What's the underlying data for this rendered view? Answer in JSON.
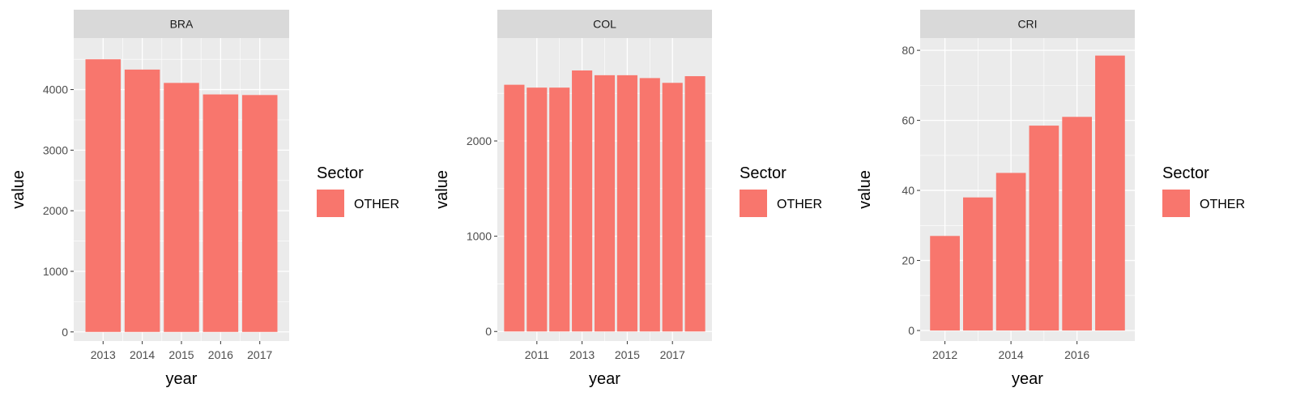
{
  "chart_data": [
    {
      "type": "bar",
      "title": "BRA",
      "xlabel": "year",
      "ylabel": "value",
      "categories": [
        2013,
        2014,
        2015,
        2016,
        2017
      ],
      "series": [
        {
          "name": "OTHER",
          "values": [
            4500,
            4330,
            4110,
            3920,
            3910
          ]
        }
      ],
      "xlim": [
        2012.25,
        2017.75
      ],
      "ylim": [
        -150,
        4850
      ],
      "xticks": [
        2013,
        2014,
        2015,
        2016,
        2017
      ],
      "yticks": [
        0,
        1000,
        2000,
        3000,
        4000
      ],
      "legend": {
        "title": "Sector",
        "entries": [
          "OTHER"
        ],
        "placement": "right"
      },
      "grid": true
    },
    {
      "type": "bar",
      "title": "COL",
      "xlabel": "year",
      "ylabel": "value",
      "categories": [
        2010,
        2011,
        2012,
        2013,
        2014,
        2015,
        2016,
        2017,
        2018
      ],
      "series": [
        {
          "name": "OTHER",
          "values": [
            2590,
            2560,
            2560,
            2740,
            2690,
            2690,
            2660,
            2610,
            2680
          ]
        }
      ],
      "xlim": [
        2009.25,
        2018.75
      ],
      "ylim": [
        -100,
        3080
      ],
      "xticks": [
        2011,
        2013,
        2015,
        2017
      ],
      "yticks": [
        0,
        1000,
        2000
      ],
      "legend": {
        "title": "Sector",
        "entries": [
          "OTHER"
        ],
        "placement": "right"
      },
      "grid": true
    },
    {
      "type": "bar",
      "title": "CRI",
      "xlabel": "year",
      "ylabel": "value",
      "categories": [
        2012,
        2013,
        2014,
        2015,
        2016,
        2017
      ],
      "series": [
        {
          "name": "OTHER",
          "values": [
            27,
            38,
            45,
            58.5,
            61,
            78.5
          ]
        }
      ],
      "xlim": [
        2011.25,
        2017.75
      ],
      "ylim": [
        -3,
        83.5
      ],
      "xticks": [
        2012,
        2014,
        2016
      ],
      "yticks": [
        0,
        20,
        40,
        60,
        80
      ],
      "legend": {
        "title": "Sector",
        "entries": [
          "OTHER"
        ],
        "placement": "right"
      },
      "grid": true
    }
  ],
  "colors": {
    "bar": "#F8766D",
    "panel": "#EBEBEB",
    "strip": "#D9D9D9",
    "grid_major": "#FFFFFF",
    "axis_text": "#4D4D4D",
    "strip_text": "#1A1A1A"
  }
}
